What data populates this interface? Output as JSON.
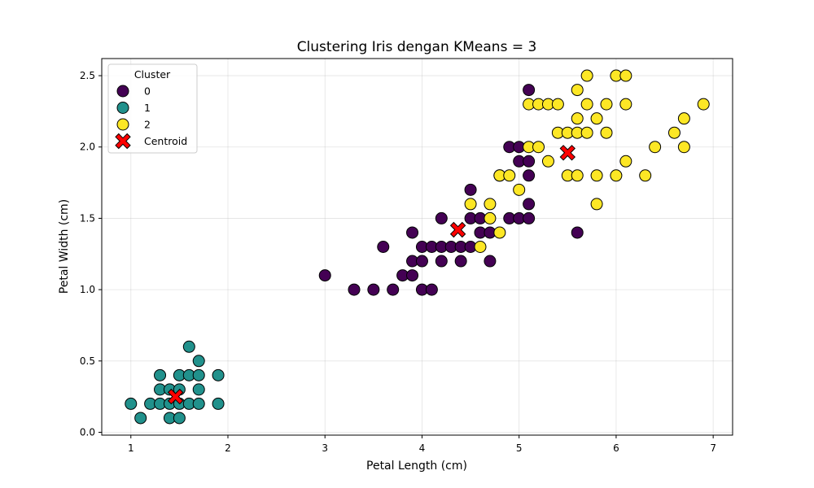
{
  "chart_data": {
    "type": "scatter",
    "title": "Clustering Iris dengan KMeans = 3",
    "xlabel": "Petal Length (cm)",
    "ylabel": "Petal Width (cm)",
    "xlim": [
      0.7,
      7.2
    ],
    "ylim": [
      -0.02,
      2.62
    ],
    "xticks": [
      1,
      2,
      3,
      4,
      5,
      6,
      7
    ],
    "yticks": [
      0.0,
      0.5,
      1.0,
      1.5,
      2.0,
      2.5
    ],
    "ytick_labels": [
      "0.0",
      "0.5",
      "1.0",
      "1.5",
      "2.0",
      "2.5"
    ],
    "grid": true,
    "legend": {
      "title": "Cluster",
      "placement": "top-left",
      "entries": [
        "0",
        "1",
        "2",
        "Centroid"
      ]
    },
    "series": [
      {
        "name": "0",
        "color": "#440154",
        "points": [
          [
            3.0,
            1.1
          ],
          [
            3.3,
            1.0
          ],
          [
            3.5,
            1.0
          ],
          [
            3.7,
            1.0
          ],
          [
            3.6,
            1.3
          ],
          [
            3.8,
            1.1
          ],
          [
            3.9,
            1.1
          ],
          [
            3.9,
            1.2
          ],
          [
            3.9,
            1.4
          ],
          [
            4.0,
            1.0
          ],
          [
            4.1,
            1.0
          ],
          [
            4.0,
            1.2
          ],
          [
            4.0,
            1.3
          ],
          [
            4.1,
            1.3
          ],
          [
            4.2,
            1.3
          ],
          [
            4.2,
            1.2
          ],
          [
            4.2,
            1.5
          ],
          [
            4.3,
            1.3
          ],
          [
            4.4,
            1.3
          ],
          [
            4.4,
            1.2
          ],
          [
            4.5,
            1.3
          ],
          [
            4.5,
            1.5
          ],
          [
            4.5,
            1.7
          ],
          [
            4.6,
            1.4
          ],
          [
            4.6,
            1.5
          ],
          [
            4.7,
            1.2
          ],
          [
            4.7,
            1.4
          ],
          [
            4.8,
            1.8
          ],
          [
            4.9,
            1.5
          ],
          [
            4.9,
            2.0
          ],
          [
            5.0,
            1.5
          ],
          [
            5.0,
            2.0
          ],
          [
            5.0,
            1.9
          ],
          [
            5.1,
            1.5
          ],
          [
            5.1,
            1.6
          ],
          [
            5.1,
            1.8
          ],
          [
            5.1,
            1.9
          ],
          [
            5.1,
            2.4
          ],
          [
            5.6,
            1.4
          ]
        ]
      },
      {
        "name": "1",
        "color": "#21918c",
        "points": [
          [
            1.0,
            0.2
          ],
          [
            1.1,
            0.1
          ],
          [
            1.2,
            0.2
          ],
          [
            1.3,
            0.2
          ],
          [
            1.3,
            0.3
          ],
          [
            1.3,
            0.4
          ],
          [
            1.4,
            0.1
          ],
          [
            1.4,
            0.2
          ],
          [
            1.4,
            0.3
          ],
          [
            1.5,
            0.1
          ],
          [
            1.5,
            0.2
          ],
          [
            1.5,
            0.3
          ],
          [
            1.5,
            0.4
          ],
          [
            1.6,
            0.2
          ],
          [
            1.6,
            0.4
          ],
          [
            1.6,
            0.6
          ],
          [
            1.7,
            0.2
          ],
          [
            1.7,
            0.3
          ],
          [
            1.7,
            0.4
          ],
          [
            1.7,
            0.5
          ],
          [
            1.9,
            0.2
          ],
          [
            1.9,
            0.4
          ]
        ]
      },
      {
        "name": "2",
        "color": "#fde725",
        "points": [
          [
            4.5,
            1.6
          ],
          [
            4.6,
            1.3
          ],
          [
            4.7,
            1.5
          ],
          [
            4.7,
            1.6
          ],
          [
            4.8,
            1.4
          ],
          [
            4.8,
            1.8
          ],
          [
            4.9,
            1.8
          ],
          [
            5.0,
            1.7
          ],
          [
            5.1,
            2.0
          ],
          [
            5.1,
            2.3
          ],
          [
            5.2,
            2.0
          ],
          [
            5.2,
            2.3
          ],
          [
            5.3,
            1.9
          ],
          [
            5.3,
            2.3
          ],
          [
            5.4,
            2.1
          ],
          [
            5.4,
            2.3
          ],
          [
            5.5,
            1.8
          ],
          [
            5.5,
            2.1
          ],
          [
            5.6,
            1.8
          ],
          [
            5.6,
            2.1
          ],
          [
            5.6,
            2.2
          ],
          [
            5.6,
            2.4
          ],
          [
            5.7,
            2.1
          ],
          [
            5.7,
            2.3
          ],
          [
            5.7,
            2.5
          ],
          [
            5.8,
            1.6
          ],
          [
            5.8,
            1.8
          ],
          [
            5.8,
            2.2
          ],
          [
            5.9,
            2.1
          ],
          [
            5.9,
            2.3
          ],
          [
            6.0,
            1.8
          ],
          [
            6.0,
            2.5
          ],
          [
            6.1,
            1.9
          ],
          [
            6.1,
            2.3
          ],
          [
            6.1,
            2.5
          ],
          [
            6.3,
            1.8
          ],
          [
            6.4,
            2.0
          ],
          [
            6.6,
            2.1
          ],
          [
            6.7,
            2.0
          ],
          [
            6.7,
            2.2
          ],
          [
            6.9,
            2.3
          ]
        ]
      }
    ],
    "centroids": {
      "name": "Centroid",
      "color": "#ff0000",
      "marker": "X",
      "points": [
        [
          1.46,
          0.25
        ],
        [
          4.37,
          1.42
        ],
        [
          5.5,
          1.96
        ]
      ]
    }
  }
}
